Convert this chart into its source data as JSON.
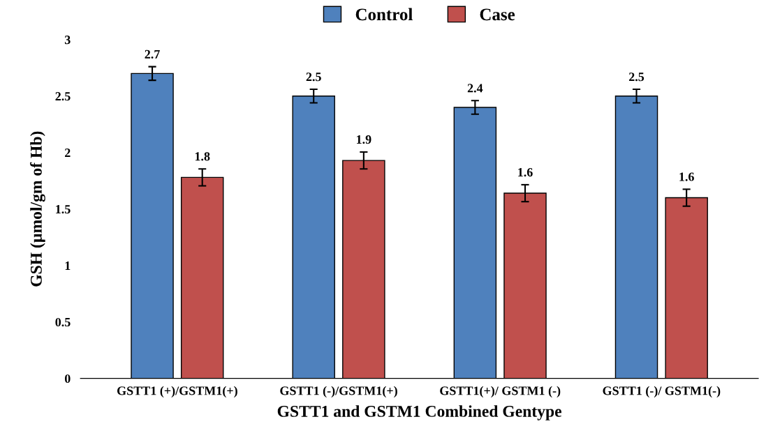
{
  "chart_data": {
    "type": "bar",
    "xlabel": "GSTT1 and GSTM1 Combined Gentype",
    "ylabel": "GSH (µmol/gm of Hb)",
    "categories": [
      "GSTT1 (+)/GSTM1(+)",
      "GSTT1 (-)/GSTM1(+)",
      "GSTT1(+)/ GSTM1 (-)",
      "GSTT1 (-)/ GSTM1(-)"
    ],
    "series": [
      {
        "name": "Control",
        "color": "#4f81bd",
        "values": [
          2.7,
          2.5,
          2.4,
          2.5
        ],
        "errors": [
          0.06,
          0.06,
          0.06,
          0.06
        ],
        "value_labels": [
          "2.7",
          "2.5",
          "2.4",
          "2.5"
        ]
      },
      {
        "name": "Case",
        "color": "#c0504d",
        "values": [
          1.78,
          1.93,
          1.64,
          1.6
        ],
        "errors": [
          0.075,
          0.075,
          0.075,
          0.075
        ],
        "value_labels": [
          "1.8",
          "1.9",
          "1.6",
          "1.6"
        ]
      }
    ],
    "ylim": [
      0,
      3
    ],
    "yticks": [
      0,
      0.5,
      1,
      1.5,
      2,
      2.5,
      3
    ],
    "grid": false,
    "legend": "top"
  }
}
